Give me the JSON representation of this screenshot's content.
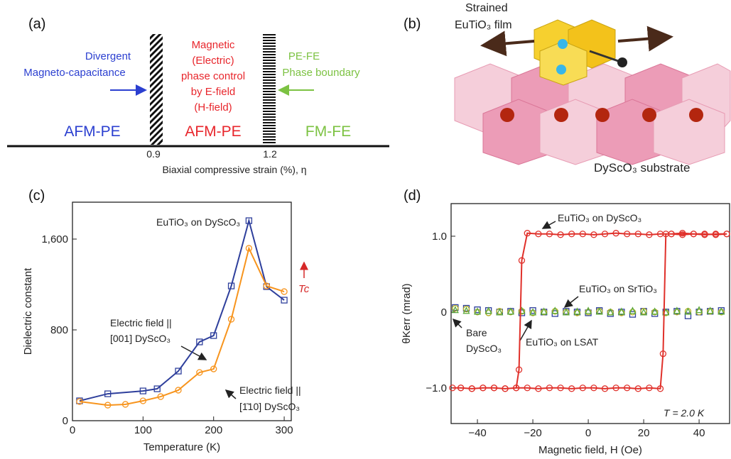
{
  "diagram_a": {
    "label": "(a)",
    "ticks": [
      "0.9",
      "1.2"
    ],
    "axis_label": "Biaxial compressive strain (%), η",
    "left_note": [
      "Divergent",
      "Magneto-capacitance"
    ],
    "center_note": [
      "Magnetic",
      "(Electric)",
      "phase control",
      "by E-field",
      "(H-field)"
    ],
    "right_note": [
      "PE-FE",
      "Phase boundary"
    ],
    "phases": [
      "AFM-PE",
      "AFM-PE",
      "FM-FE"
    ]
  },
  "illustration_b": {
    "label": "(b)",
    "film": [
      "Strained",
      "EuTiO₃ film"
    ],
    "substrate": "DyScO₃ substrate"
  },
  "chart_data": [
    {
      "type": "line",
      "panel": "(c)",
      "x_label": "Temperature (K)",
      "y_label": "Dielectric constant",
      "xlim": [
        0,
        310
      ],
      "ylim": [
        0,
        1925
      ],
      "xticks": [
        0,
        100,
        200,
        300
      ],
      "yticks": [
        0,
        800,
        {
          "value": 1600,
          "label": "1,600"
        }
      ],
      "annotations": [
        "EuTiO₃ on DyScO₃",
        "Electric field ||",
        "[001] DyScO₃",
        "Electric field ||",
        "[1̄10] DyScO₃",
        "Tc"
      ],
      "series": [
        {
          "color": "#2e3f9c",
          "marker": "square",
          "line": true,
          "x": [
            10,
            50,
            100,
            120,
            150,
            180,
            200,
            225,
            250,
            275,
            300
          ],
          "values": [
            175,
            237,
            262,
            281,
            437,
            694,
            750,
            1187,
            1762,
            1181,
            1062
          ]
        },
        {
          "color": "#f7941d",
          "marker": "circle",
          "line": true,
          "x": [
            10,
            50,
            75,
            100,
            125,
            150,
            180,
            200,
            225,
            250,
            275,
            300
          ],
          "values": [
            169,
            137,
            144,
            175,
            212,
            269,
            425,
            456,
            894,
            1519,
            1187,
            1137
          ]
        }
      ]
    },
    {
      "type": "line",
      "panel": "(d)",
      "x_label": "Magnetic field, H (Oe)",
      "y_label": "θKerr (mrad)",
      "xlim": [
        -49.5,
        51
      ],
      "ylim": [
        -1.47,
        1.43
      ],
      "xticks": [
        {
          "value": -40,
          "label": "−40"
        },
        {
          "value": -20,
          "label": "−20"
        },
        0,
        20,
        40
      ],
      "yticks": [
        {
          "value": -1,
          "label": "−1.0"
        },
        0,
        {
          "value": 1,
          "label": "1.0"
        }
      ],
      "annotations": [
        "EuTiO₃ on DyScO₃",
        "EuTiO₃ on SrTiO₃",
        "EuTiO₃ on LSAT",
        "Bare",
        "DyScO₃",
        "T = 2.0 K"
      ],
      "series": [
        {
          "color": "#2e3f9c",
          "marker": "square",
          "line": false,
          "x": [
            -48,
            -44,
            -40,
            -36,
            -32,
            -28,
            -24,
            -20,
            -16,
            -12,
            -8,
            -4,
            0,
            4,
            8,
            12,
            16,
            20,
            24,
            28,
            32,
            36,
            40,
            44,
            48
          ],
          "values": [
            0.06,
            0.05,
            0.03,
            0.02,
            0.0,
            0.01,
            -0.01,
            0.02,
            0.0,
            -0.02,
            0.01,
            0.0,
            -0.01,
            0.02,
            -0.02,
            0.0,
            -0.03,
            0.01,
            -0.02,
            0.0,
            0.01,
            -0.05,
            0.0,
            0.01,
            0.02
          ]
        },
        {
          "color": "#b5b020",
          "marker": "circle",
          "line": false,
          "x": [
            -48,
            -44,
            -40,
            -36,
            -32,
            -28,
            -24,
            -20,
            -16,
            -12,
            -8,
            -4,
            0,
            4,
            8,
            12,
            16,
            20,
            24,
            28,
            32,
            36,
            40,
            44,
            48
          ],
          "values": [
            0.05,
            0.04,
            0.0,
            -0.01,
            0.01,
            0.0,
            0.01,
            -0.01,
            0.0,
            0.01,
            0.0,
            -0.01,
            0.0,
            0.01,
            0.0,
            -0.01,
            0.0,
            0.01,
            0.0,
            -0.01,
            0.0,
            0.01,
            0.0,
            0.01,
            0.0
          ]
        },
        {
          "color": "#5aa83a",
          "marker": "triangle",
          "line": false,
          "x": [
            -48,
            -44,
            -40,
            -36,
            -32,
            -28,
            -24,
            -20,
            -16,
            -12,
            -8,
            -4,
            0,
            4,
            8,
            12,
            16,
            20,
            24,
            28,
            32,
            36,
            40,
            44,
            48
          ],
          "values": [
            0.03,
            0.02,
            0.01,
            0.02,
            0.0,
            0.01,
            0.02,
            0.0,
            0.01,
            0.02,
            0.0,
            0.01,
            0.02,
            0.01,
            0.0,
            0.01,
            0.02,
            0.0,
            0.01,
            0.0,
            0.02,
            0.01,
            0.03,
            0.02,
            0.01
          ]
        },
        {
          "color": "#e0302a",
          "marker": "circle",
          "line": true,
          "x": [
            50,
            46,
            42,
            38,
            34,
            30,
            26,
            22,
            18,
            14,
            10,
            6,
            2,
            -2,
            -6,
            -10,
            -14,
            -18,
            -22,
            -24,
            -25,
            -26,
            -30,
            -34,
            -38,
            -42,
            -46,
            -49,
            -46,
            -42,
            -38,
            -34,
            -30,
            -26,
            -22,
            -18,
            -14,
            -10,
            -6,
            -2,
            2,
            6,
            10,
            14,
            18,
            22,
            26,
            27,
            28,
            30,
            34,
            38,
            42,
            46,
            50
          ],
          "values": [
            1.03,
            1.03,
            1.02,
            1.03,
            1.04,
            1.03,
            1.03,
            1.02,
            1.03,
            1.03,
            1.04,
            1.03,
            1.02,
            1.03,
            1.03,
            1.02,
            1.03,
            1.03,
            1.04,
            0.68,
            -0.76,
            -1.0,
            -1.01,
            -1.0,
            -1.0,
            -1.01,
            -1.0,
            -1.0,
            -1.0,
            -1.01,
            -1.0,
            -1.0,
            -1.01,
            -1.0,
            -1.0,
            -1.01,
            -1.0,
            -1.0,
            -1.01,
            -1.0,
            -1.0,
            -1.01,
            -1.0,
            -1.0,
            -1.01,
            -1.0,
            -1.01,
            -0.55,
            1.03,
            1.03,
            1.02,
            1.03,
            1.03,
            1.02,
            1.03
          ]
        }
      ]
    }
  ]
}
